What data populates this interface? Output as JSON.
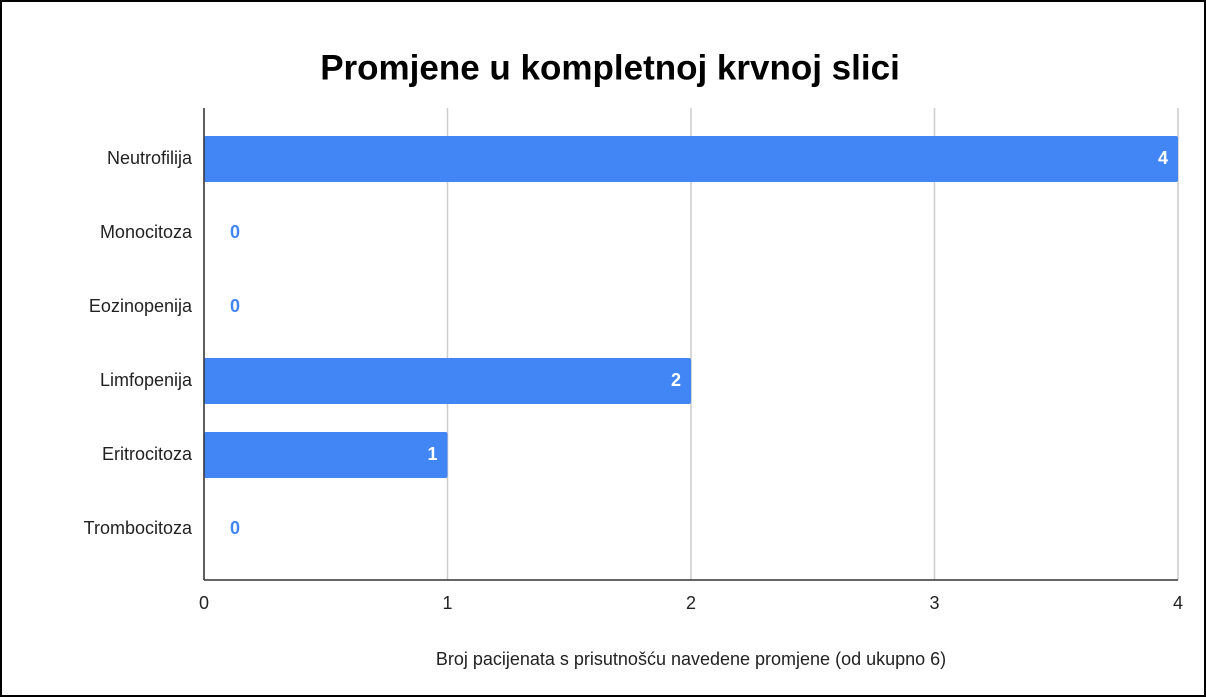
{
  "chart_data": {
    "type": "bar",
    "orientation": "horizontal",
    "title": "Promjene u kompletnoj krvnoj slici",
    "x_label": "Broj pacijenata s prisutnošću navedene promjene (od ukupno 6)",
    "categories": [
      "Neutrofilija",
      "Monocitoza",
      "Eozinopenija",
      "Limfopenija",
      "Eritrocitoza",
      "Trombocitoza"
    ],
    "values": [
      4,
      0,
      0,
      2,
      1,
      0
    ],
    "color": "#4285f4",
    "xlim": [
      0,
      4
    ],
    "xticks": [
      0,
      1,
      2,
      3,
      4
    ],
    "grid": true
  }
}
